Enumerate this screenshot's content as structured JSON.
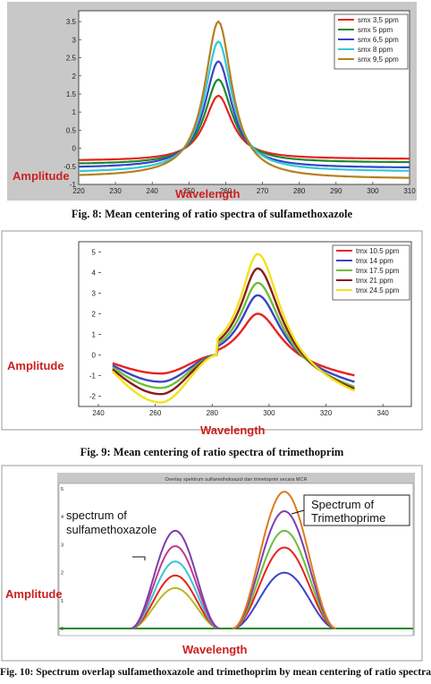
{
  "figures": [
    {
      "caption": "Fig. 8: Mean centering of ratio spectra of sulfamethoxazole",
      "amplitude_label": "Amplitude",
      "wavelength_label": "Wavelength",
      "chart_data": {
        "type": "line",
        "xlabel": "Wavelength",
        "ylabel": "Amplitude",
        "xlim": [
          220,
          310
        ],
        "ylim": [
          -1,
          3.8
        ],
        "x_ticks": [
          "220",
          "230",
          "240",
          "250",
          "260",
          "270",
          "280",
          "290",
          "300",
          "310"
        ],
        "y_ticks": [
          "-1",
          "-0.5",
          "0",
          "0.5",
          "1",
          "1.5",
          "2",
          "2.5",
          "3",
          "3.5"
        ],
        "legend": "top-right",
        "peak_x": 258,
        "width": 4.5,
        "x_range": [
          220,
          310
        ],
        "series": [
          {
            "name": "smx 3,5 ppm",
            "color": "#e8221e",
            "peak": 1.45,
            "left": -0.35,
            "right": -0.3
          },
          {
            "name": "smx 5 ppm",
            "color": "#1a8a2e",
            "peak": 1.9,
            "left": -0.45,
            "right": -0.4
          },
          {
            "name": "smx 6,5 ppm",
            "color": "#3a44c8",
            "peak": 2.4,
            "left": -0.55,
            "right": -0.55
          },
          {
            "name": "smx 8 ppm",
            "color": "#33c9d6",
            "peak": 2.95,
            "left": -0.68,
            "right": -0.65
          },
          {
            "name": "smx 9,5 ppm",
            "color": "#b5801f",
            "peak": 3.5,
            "left": -0.8,
            "right": -0.85
          }
        ]
      }
    },
    {
      "caption": "Fig. 9: Mean centering of ratio spectra of trimethoprim",
      "amplitude_label": "Amplitude",
      "wavelength_label": "Wavelength",
      "chart_data": {
        "type": "line",
        "xlabel": "Wavelength",
        "ylabel": "Amplitude",
        "xlim": [
          240,
          350
        ],
        "ylim": [
          -2.5,
          5.5
        ],
        "x_ticks": [
          "240",
          "260",
          "280",
          "300",
          "320",
          "340"
        ],
        "y_ticks": [
          "-2",
          "-1",
          "0",
          "1",
          "2",
          "3",
          "4",
          "5"
        ],
        "legend": "top-right",
        "peak_x": 296,
        "width": 9,
        "x_range": [
          245,
          330
        ],
        "series": [
          {
            "name": "tmx 10.5 ppm",
            "color": "#e8221e",
            "peak": 2.0,
            "min": -0.9,
            "start": -0.4,
            "end": -1.2
          },
          {
            "name": "tmx 14 ppm",
            "color": "#3a44c8",
            "peak": 2.9,
            "min": -1.3,
            "start": -0.5,
            "end": -1.6
          },
          {
            "name": "tmx 17.5 ppm",
            "color": "#6cbf3a",
            "peak": 3.5,
            "min": -1.6,
            "start": -0.6,
            "end": -1.9
          },
          {
            "name": "tmx 21 ppm",
            "color": "#8a1c1c",
            "peak": 4.2,
            "min": -1.9,
            "start": -0.7,
            "end": -2.05
          },
          {
            "name": "tmx 24.5 ppm",
            "color": "#f0e31a",
            "peak": 4.9,
            "min": -2.3,
            "start": -0.8,
            "end": -2.2
          }
        ]
      }
    },
    {
      "caption": "Fig. 10: Spectrum overlap sulfamethoxazole and trimethoprim by mean centering of ratio spectra",
      "amplitude_label": "Amplitude",
      "wavelength_label": "Wavelength",
      "plot_title": "Overlay spektrum sulfamethoksazol dan trimetoprim secara MCR",
      "annotation_smx": [
        "spectrum of",
        "sulfamethoxazole"
      ],
      "annotation_tmp": [
        "Spectrum of",
        "Trimethoprime"
      ],
      "chart_data": {
        "type": "line",
        "ylabel": "Amplitude",
        "xlabel": "Wavelength",
        "ylim": [
          0,
          5
        ],
        "y_ticks": [
          "0",
          "1",
          "2",
          "3",
          "4",
          "5"
        ],
        "smx_peaks": [
          1.45,
          1.9,
          2.4,
          2.95,
          3.5
        ],
        "tmp_peaks": [
          2.0,
          2.9,
          3.5,
          4.2,
          4.9
        ],
        "colors_smx": [
          "#b8b820",
          "#e8221e",
          "#33c9d6",
          "#c23b8e",
          "#7a3fb0"
        ],
        "colors_tmp": [
          "#3a44c8",
          "#e8221e",
          "#6cbf3a",
          "#7a3fb0",
          "#e07a1c"
        ],
        "baseline_color": "#1a8a2e"
      }
    }
  ]
}
